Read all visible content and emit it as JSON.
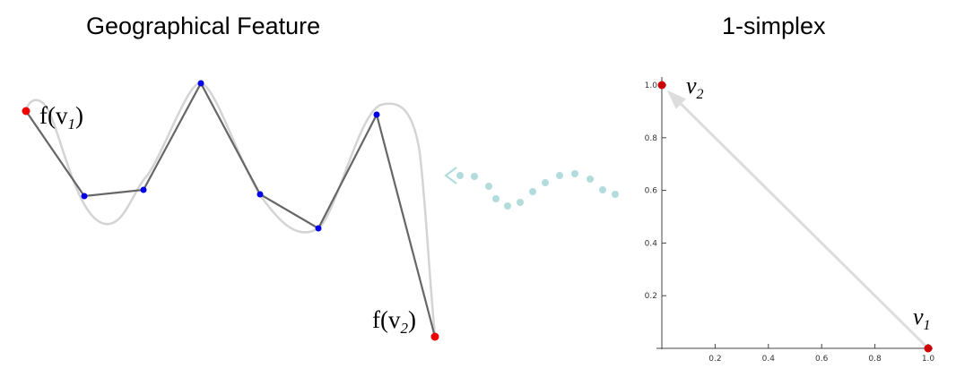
{
  "titles": {
    "left": "Geographical Feature",
    "right": "1-simplex"
  },
  "feature": {
    "label_start": "f(v",
    "label_start_sub": "1",
    "label_start_close": ")",
    "label_end": "f(v",
    "label_end_sub": "2",
    "label_end_close": ")",
    "colors": {
      "polyline": "#666666",
      "curve": "#d4d4d4",
      "vertex": "#0000ee",
      "endpoint": "#ee0000"
    }
  },
  "mapping_arrow": {
    "color": "#b2dcdc"
  },
  "simplex_plot": {
    "x_ticks": [
      "0.2",
      "0.4",
      "0.6",
      "0.8",
      "1.0"
    ],
    "y_ticks": [
      "0.2",
      "0.4",
      "0.6",
      "0.8",
      "1.0"
    ],
    "vertex1": {
      "name": "v",
      "sub": "1",
      "x": 1.0,
      "y": 0.0
    },
    "vertex2": {
      "name": "v",
      "sub": "2",
      "x": 0.0,
      "y": 1.0
    },
    "colors": {
      "edge": "#dddddd",
      "point": "#cc0000"
    }
  }
}
